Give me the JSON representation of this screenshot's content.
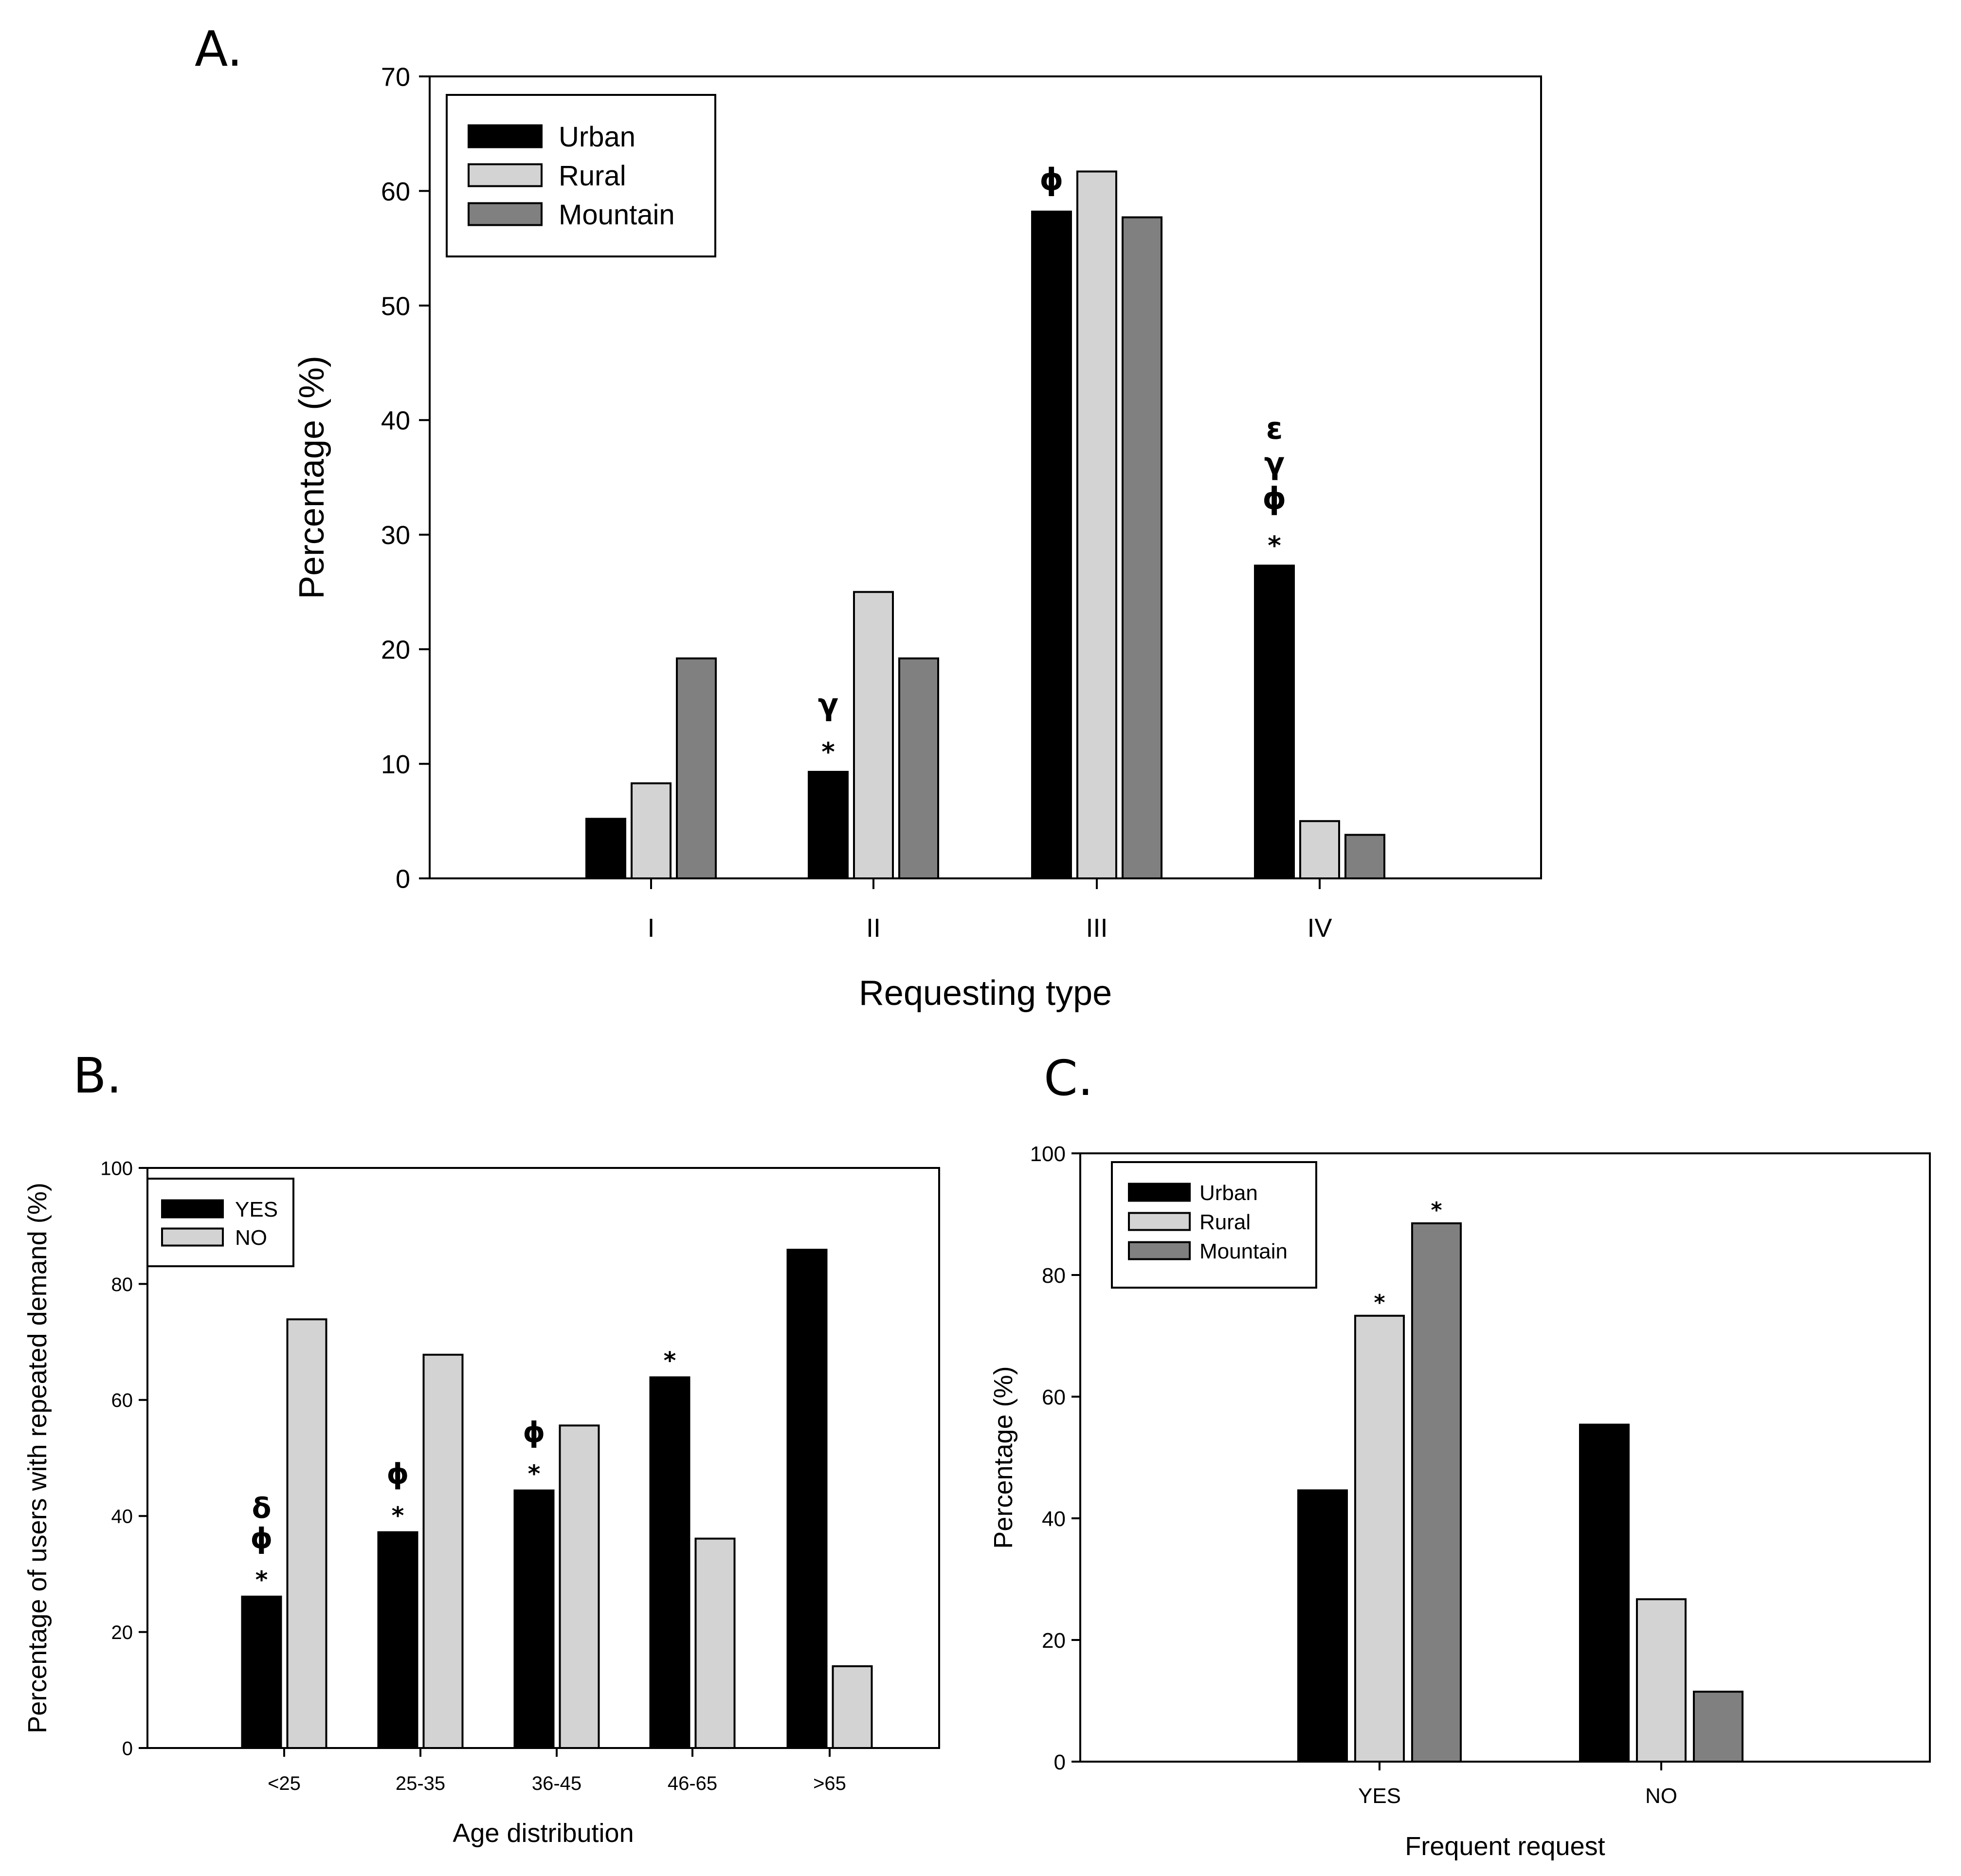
{
  "colors": {
    "Urban": "#000000",
    "Rural": "#d3d3d3",
    "Mountain": "#808080",
    "YES": "#000000",
    "NO": "#d3d3d3"
  },
  "chart_data": [
    {
      "panel": "A.",
      "type": "bar",
      "xlabel": "Requesting type",
      "ylabel": "Percentage (%)",
      "ylim": [
        0,
        70
      ],
      "yticks": [
        0,
        10,
        20,
        30,
        40,
        50,
        60,
        70
      ],
      "categories": [
        "I",
        "II",
        "III",
        "IV"
      ],
      "legend": {
        "position": "top-left",
        "entries": [
          "Urban",
          "Rural",
          "Mountain"
        ]
      },
      "series": [
        {
          "name": "Urban",
          "values": [
            5.2,
            9.3,
            58.2,
            27.3
          ]
        },
        {
          "name": "Rural",
          "values": [
            8.3,
            25.0,
            61.7,
            5.0
          ]
        },
        {
          "name": "Mountain",
          "values": [
            19.2,
            19.2,
            57.7,
            3.8
          ]
        }
      ],
      "annotations": [
        {
          "category": "II",
          "series": "Urban",
          "lines": [
            "γ",
            "*"
          ]
        },
        {
          "category": "III",
          "series": "Urban",
          "lines": [
            "ϕ"
          ]
        },
        {
          "category": "IV",
          "series": "Urban",
          "lines": [
            "ε",
            "γ",
            "ϕ",
            "*"
          ]
        }
      ]
    },
    {
      "panel": "B.",
      "type": "bar",
      "xlabel": "Age distribution",
      "ylabel": "Percentage of users with repeated demand (%)",
      "ylim": [
        0,
        100
      ],
      "yticks": [
        0,
        20,
        40,
        60,
        80,
        100
      ],
      "categories": [
        "<25",
        "25-35",
        "36-45",
        "46-65",
        ">65"
      ],
      "legend": {
        "position": "top-left",
        "entries": [
          "YES",
          "NO"
        ]
      },
      "series": [
        {
          "name": "YES",
          "values": [
            26.1,
            37.2,
            44.4,
            63.9,
            85.9
          ]
        },
        {
          "name": "NO",
          "values": [
            73.9,
            67.8,
            55.6,
            36.1,
            14.1
          ]
        }
      ],
      "annotations": [
        {
          "category": "<25",
          "series": "YES",
          "lines": [
            "δ",
            "ϕ",
            "*"
          ]
        },
        {
          "category": "25-35",
          "series": "YES",
          "lines": [
            "ϕ",
            "*"
          ]
        },
        {
          "category": "36-45",
          "series": "YES",
          "lines": [
            "ϕ",
            "*"
          ]
        },
        {
          "category": "46-65",
          "series": "YES",
          "lines": [
            "*"
          ]
        }
      ]
    },
    {
      "panel": "C.",
      "type": "bar",
      "xlabel": "Frequent request",
      "ylabel": "Percentage (%)",
      "ylim": [
        0,
        100
      ],
      "yticks": [
        0,
        20,
        40,
        60,
        80,
        100
      ],
      "categories": [
        "YES",
        "NO"
      ],
      "legend": {
        "position": "top-left",
        "entries": [
          "Urban",
          "Rural",
          "Mountain"
        ]
      },
      "series": [
        {
          "name": "Urban",
          "values": [
            44.6,
            55.4
          ]
        },
        {
          "name": "Rural",
          "values": [
            73.3,
            26.7
          ]
        },
        {
          "name": "Mountain",
          "values": [
            88.5,
            11.5
          ]
        }
      ],
      "annotations": [
        {
          "category": "YES",
          "series": "Rural",
          "lines": [
            "*"
          ]
        },
        {
          "category": "YES",
          "series": "Mountain",
          "lines": [
            "*"
          ]
        }
      ]
    }
  ]
}
